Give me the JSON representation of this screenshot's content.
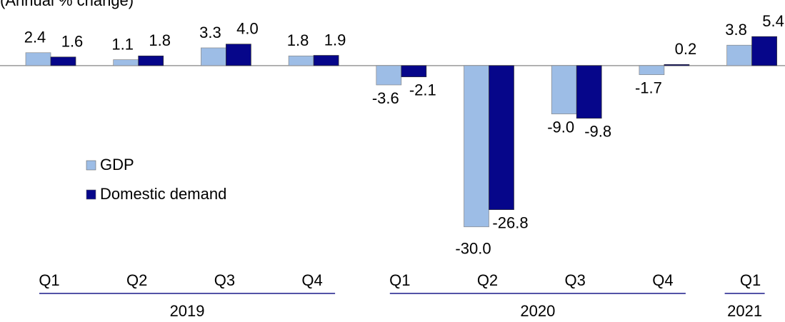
{
  "chart_data": {
    "type": "bar",
    "subtitle": "(Annual % change)",
    "categories": [
      "Q1",
      "Q2",
      "Q3",
      "Q4",
      "Q1",
      "Q2",
      "Q3",
      "Q4",
      "Q1"
    ],
    "groups": [
      {
        "label": "2019",
        "count": 4
      },
      {
        "label": "2020",
        "count": 4
      },
      {
        "label": "2021",
        "count": 1
      }
    ],
    "series": [
      {
        "name": "GDP",
        "color": "#9dbde6",
        "values": [
          2.4,
          1.1,
          3.3,
          1.8,
          -3.6,
          -30.0,
          -9.0,
          -1.7,
          3.8
        ],
        "value_labels": [
          "2.4",
          "1.1",
          "3.3",
          "1.8",
          "-3.6",
          "-30.0",
          "-9.0",
          "-1.7",
          "3.8"
        ]
      },
      {
        "name": "Domestic demand",
        "color": "#06068a",
        "values": [
          1.6,
          1.8,
          4.0,
          1.9,
          -2.1,
          -26.8,
          -9.8,
          0.2,
          5.4
        ],
        "value_labels": [
          "1.6",
          "1.8",
          "4.0",
          "1.9",
          "-2.1",
          "-26.8",
          "-9.8",
          "0.2",
          "5.4"
        ]
      }
    ],
    "ylim": [
      -47.7,
      12.2
    ],
    "legend": "left"
  }
}
